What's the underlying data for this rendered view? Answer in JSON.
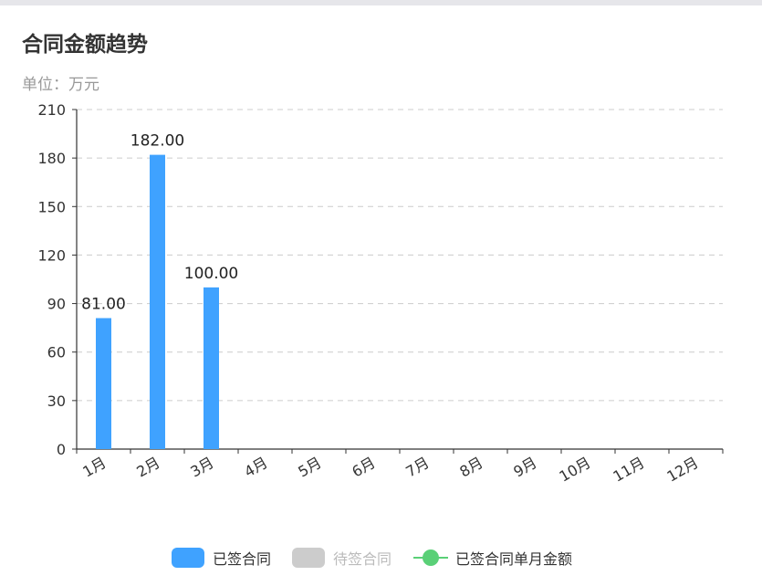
{
  "header": {
    "title": "合同金额趋势",
    "unit_label": "单位：万元"
  },
  "colors": {
    "signed": "#3fa2ff",
    "pending": "#cccccc",
    "monthly_line": "#5ad077",
    "axis": "#333333",
    "grid": "#cccccc",
    "text": "#333333",
    "legend_inactive_text": "#bbbbbb"
  },
  "legend": {
    "items": [
      {
        "label": "已签合同",
        "icon": "rounded-rect",
        "active": true
      },
      {
        "label": "待签合同",
        "icon": "rounded-rect",
        "active": false
      },
      {
        "label": "已签合同单月金额",
        "icon": "line-dot",
        "active": true
      }
    ],
    "placement": "bottom-center"
  },
  "chart_data": {
    "type": "bar",
    "categories": [
      "1月",
      "2月",
      "3月",
      "4月",
      "5月",
      "6月",
      "7月",
      "8月",
      "9月",
      "10月",
      "11月",
      "12月"
    ],
    "series": [
      {
        "name": "已签合同",
        "values": [
          81.0,
          182.0,
          100.0,
          null,
          null,
          null,
          null,
          null,
          null,
          null,
          null,
          null
        ],
        "labels": [
          "81.00",
          "182.00",
          "100.00"
        ]
      }
    ],
    "ylim": [
      0,
      210
    ],
    "yticks": [
      0,
      30,
      60,
      90,
      120,
      150,
      180,
      210
    ],
    "grid": true,
    "x_tick_rotation": "slanted"
  }
}
